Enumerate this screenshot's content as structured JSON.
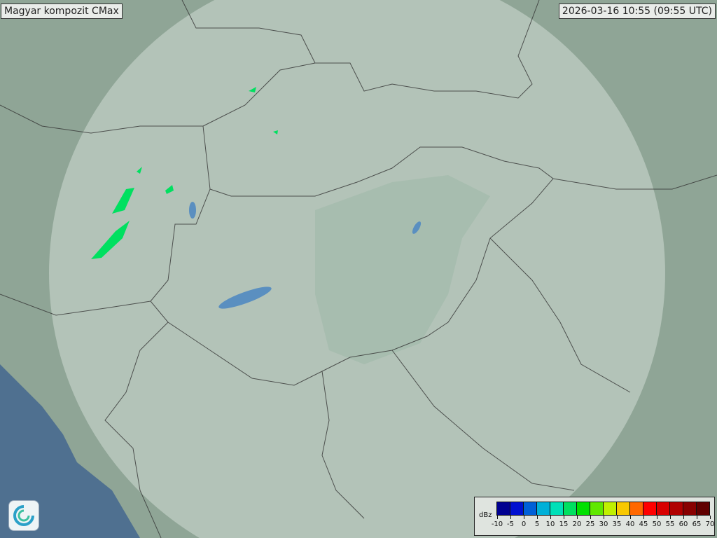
{
  "title": "Magyar kompozit  CMax",
  "timestamp": "2026-03-16 10:55 (09:55 UTC)",
  "legend": {
    "unit": "dBz",
    "ticks": [
      "-10",
      "-5",
      "0",
      "5",
      "10",
      "15",
      "20",
      "25",
      "30",
      "35",
      "40",
      "45",
      "50",
      "55",
      "60",
      "65",
      "70"
    ],
    "colors": [
      "#000090",
      "#0010d0",
      "#0060d8",
      "#00b0d8",
      "#00e0b8",
      "#00e060",
      "#00e000",
      "#60e800",
      "#c0f000",
      "#f8c800",
      "#ff6800",
      "#ff0000",
      "#d80000",
      "#b00000",
      "#880000",
      "#600000"
    ]
  },
  "map": {
    "land_color": "#8fa596",
    "sea_color": "#4f7090",
    "radar_coverage_color": "#dfe8e2",
    "echo_color": "#00e060",
    "logo_icon": "met-service-swirl-icon"
  }
}
